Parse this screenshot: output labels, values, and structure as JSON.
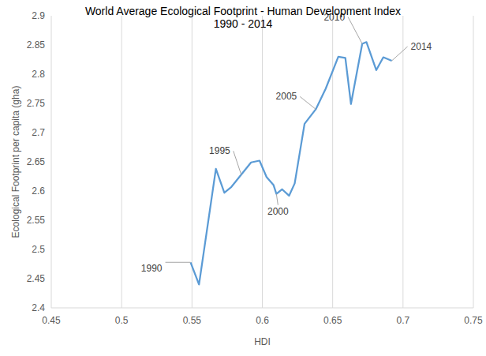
{
  "chart_data": {
    "type": "line",
    "title": "World Average Ecological Footprint - Human Development Index",
    "subtitle": "1990 - 2014",
    "x_label": "HDI",
    "y_label": "Ecological Footprint per capita (gha)",
    "x": [
      0.549,
      0.555,
      0.567,
      0.573,
      0.578,
      0.585,
      0.592,
      0.598,
      0.603,
      0.608,
      0.61,
      0.614,
      0.619,
      0.623,
      0.63,
      0.638,
      0.645,
      0.654,
      0.659,
      0.663,
      0.671,
      0.674,
      0.681,
      0.686,
      0.692
    ],
    "y": [
      2.478,
      2.44,
      2.638,
      2.597,
      2.607,
      2.628,
      2.649,
      2.652,
      2.624,
      2.61,
      2.595,
      2.603,
      2.592,
      2.613,
      2.715,
      2.74,
      2.775,
      2.83,
      2.828,
      2.749,
      2.852,
      2.855,
      2.807,
      2.829,
      2.823
    ],
    "color": "#5b9bd5",
    "xlim": [
      0.45,
      0.75
    ],
    "ylim": [
      2.4,
      2.9
    ],
    "xticks": [
      0.45,
      0.5,
      0.55,
      0.6,
      0.65,
      0.7,
      0.75
    ],
    "yticks": [
      2.4,
      2.45,
      2.5,
      2.55,
      2.6,
      2.65,
      2.7,
      2.75,
      2.8,
      2.85,
      2.9
    ],
    "grid": "x",
    "annotations": [
      {
        "text": "1990",
        "x": 0.549,
        "y": 2.478
      },
      {
        "text": "1995",
        "x": 0.585,
        "y": 2.628
      },
      {
        "text": "2000",
        "x": 0.61,
        "y": 2.595
      },
      {
        "text": "2005",
        "x": 0.638,
        "y": 2.74
      },
      {
        "text": "2010",
        "x": 0.671,
        "y": 2.852
      },
      {
        "text": "2014",
        "x": 0.692,
        "y": 2.823
      }
    ]
  }
}
